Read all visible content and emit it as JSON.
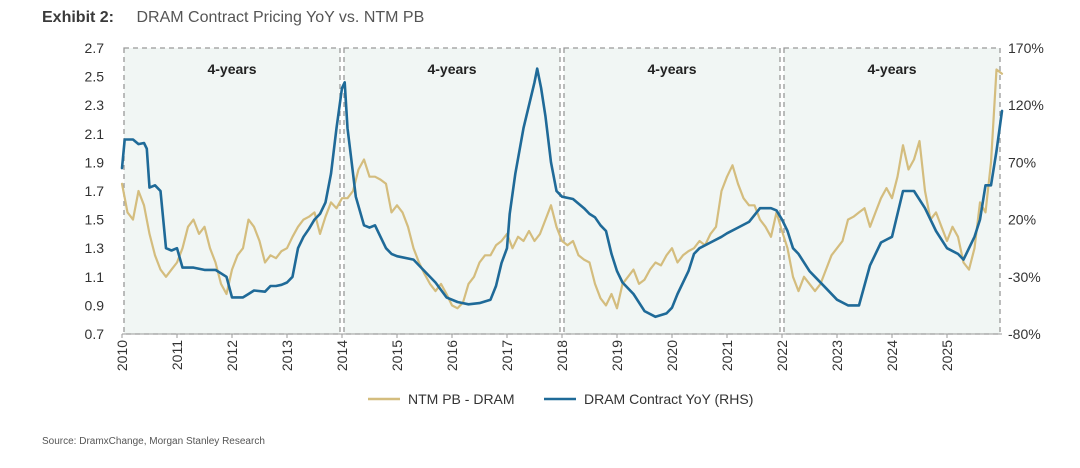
{
  "header": {
    "exhibit": "Exhibit 2:",
    "title": "DRAM Contract Pricing YoY vs. NTM PB"
  },
  "source": "Source: DramxChange, Morgan Stanley Research",
  "chart_data": {
    "type": "line",
    "title": "DRAM Contract Pricing YoY vs. NTM PB",
    "x_range": [
      2010,
      2026
    ],
    "x_ticks": [
      "2010",
      "2011",
      "2012",
      "2013",
      "2014",
      "2015",
      "2016",
      "2017",
      "2018",
      "2019",
      "2020",
      "2021",
      "2022",
      "2023",
      "2024",
      "2025"
    ],
    "y_left": {
      "range": [
        0.7,
        2.7
      ],
      "ticks": [
        "0.7",
        "0.9",
        "1.1",
        "1.3",
        "1.5",
        "1.7",
        "1.9",
        "2.1",
        "2.3",
        "2.5",
        "2.7"
      ]
    },
    "y_right": {
      "range": [
        -80,
        170
      ],
      "ticks": [
        "-80%",
        "-30%",
        "20%",
        "70%",
        "120%",
        "170%"
      ]
    },
    "periods": [
      {
        "label": "4-years",
        "start": 2010.0,
        "end": 2014.0
      },
      {
        "label": "4-years",
        "start": 2014.0,
        "end": 2018.0
      },
      {
        "label": "4-years",
        "start": 2018.0,
        "end": 2022.0
      },
      {
        "label": "4-years",
        "start": 2022.0,
        "end": 2026.0
      }
    ],
    "colors": {
      "pb": "#d4bd7e",
      "yoy": "#1f6a98",
      "shade": "#f1f6f4",
      "border": "#999999"
    },
    "legend_placement": "bottom",
    "series": [
      {
        "name": "NTM PB - DRAM",
        "axis": "left",
        "points": [
          [
            2010.0,
            1.75
          ],
          [
            2010.1,
            1.55
          ],
          [
            2010.2,
            1.5
          ],
          [
            2010.3,
            1.7
          ],
          [
            2010.4,
            1.6
          ],
          [
            2010.5,
            1.4
          ],
          [
            2010.6,
            1.25
          ],
          [
            2010.7,
            1.15
          ],
          [
            2010.8,
            1.1
          ],
          [
            2010.9,
            1.15
          ],
          [
            2011.0,
            1.2
          ],
          [
            2011.1,
            1.3
          ],
          [
            2011.2,
            1.45
          ],
          [
            2011.3,
            1.5
          ],
          [
            2011.4,
            1.4
          ],
          [
            2011.5,
            1.45
          ],
          [
            2011.6,
            1.3
          ],
          [
            2011.7,
            1.2
          ],
          [
            2011.8,
            1.05
          ],
          [
            2011.9,
            0.98
          ],
          [
            2012.0,
            1.15
          ],
          [
            2012.1,
            1.25
          ],
          [
            2012.2,
            1.3
          ],
          [
            2012.3,
            1.5
          ],
          [
            2012.4,
            1.45
          ],
          [
            2012.5,
            1.35
          ],
          [
            2012.6,
            1.2
          ],
          [
            2012.7,
            1.25
          ],
          [
            2012.8,
            1.23
          ],
          [
            2012.9,
            1.28
          ],
          [
            2013.0,
            1.3
          ],
          [
            2013.1,
            1.38
          ],
          [
            2013.2,
            1.45
          ],
          [
            2013.3,
            1.5
          ],
          [
            2013.4,
            1.52
          ],
          [
            2013.5,
            1.55
          ],
          [
            2013.6,
            1.4
          ],
          [
            2013.7,
            1.52
          ],
          [
            2013.8,
            1.62
          ],
          [
            2013.9,
            1.58
          ],
          [
            2014.0,
            1.65
          ],
          [
            2014.1,
            1.65
          ],
          [
            2014.2,
            1.7
          ],
          [
            2014.3,
            1.85
          ],
          [
            2014.4,
            1.92
          ],
          [
            2014.5,
            1.8
          ],
          [
            2014.6,
            1.8
          ],
          [
            2014.7,
            1.78
          ],
          [
            2014.8,
            1.75
          ],
          [
            2014.9,
            1.55
          ],
          [
            2015.0,
            1.6
          ],
          [
            2015.1,
            1.55
          ],
          [
            2015.2,
            1.45
          ],
          [
            2015.3,
            1.3
          ],
          [
            2015.4,
            1.2
          ],
          [
            2015.5,
            1.12
          ],
          [
            2015.6,
            1.05
          ],
          [
            2015.7,
            1.0
          ],
          [
            2015.8,
            1.05
          ],
          [
            2015.9,
            0.98
          ],
          [
            2016.0,
            0.9
          ],
          [
            2016.1,
            0.88
          ],
          [
            2016.2,
            0.92
          ],
          [
            2016.3,
            1.05
          ],
          [
            2016.4,
            1.1
          ],
          [
            2016.5,
            1.2
          ],
          [
            2016.6,
            1.25
          ],
          [
            2016.7,
            1.25
          ],
          [
            2016.8,
            1.32
          ],
          [
            2016.9,
            1.35
          ],
          [
            2017.0,
            1.4
          ],
          [
            2017.1,
            1.3
          ],
          [
            2017.2,
            1.38
          ],
          [
            2017.3,
            1.35
          ],
          [
            2017.4,
            1.42
          ],
          [
            2017.5,
            1.35
          ],
          [
            2017.6,
            1.4
          ],
          [
            2017.7,
            1.5
          ],
          [
            2017.8,
            1.6
          ],
          [
            2017.9,
            1.45
          ],
          [
            2018.0,
            1.35
          ],
          [
            2018.1,
            1.32
          ],
          [
            2018.2,
            1.35
          ],
          [
            2018.3,
            1.25
          ],
          [
            2018.4,
            1.22
          ],
          [
            2018.5,
            1.2
          ],
          [
            2018.6,
            1.05
          ],
          [
            2018.7,
            0.95
          ],
          [
            2018.8,
            0.9
          ],
          [
            2018.9,
            0.98
          ],
          [
            2019.0,
            0.88
          ],
          [
            2019.1,
            1.05
          ],
          [
            2019.2,
            1.1
          ],
          [
            2019.3,
            1.15
          ],
          [
            2019.4,
            1.05
          ],
          [
            2019.5,
            1.08
          ],
          [
            2019.6,
            1.15
          ],
          [
            2019.7,
            1.2
          ],
          [
            2019.8,
            1.18
          ],
          [
            2019.9,
            1.25
          ],
          [
            2020.0,
            1.3
          ],
          [
            2020.1,
            1.2
          ],
          [
            2020.2,
            1.25
          ],
          [
            2020.3,
            1.28
          ],
          [
            2020.4,
            1.3
          ],
          [
            2020.5,
            1.35
          ],
          [
            2020.6,
            1.32
          ],
          [
            2020.7,
            1.4
          ],
          [
            2020.8,
            1.45
          ],
          [
            2020.9,
            1.7
          ],
          [
            2021.0,
            1.8
          ],
          [
            2021.1,
            1.88
          ],
          [
            2021.2,
            1.75
          ],
          [
            2021.3,
            1.65
          ],
          [
            2021.4,
            1.6
          ],
          [
            2021.5,
            1.6
          ],
          [
            2021.6,
            1.5
          ],
          [
            2021.7,
            1.45
          ],
          [
            2021.8,
            1.38
          ],
          [
            2021.9,
            1.55
          ],
          [
            2022.0,
            1.42
          ],
          [
            2022.1,
            1.3
          ],
          [
            2022.2,
            1.1
          ],
          [
            2022.3,
            1.0
          ],
          [
            2022.4,
            1.1
          ],
          [
            2022.5,
            1.05
          ],
          [
            2022.6,
            1.0
          ],
          [
            2022.7,
            1.05
          ],
          [
            2022.8,
            1.15
          ],
          [
            2022.9,
            1.25
          ],
          [
            2023.0,
            1.3
          ],
          [
            2023.1,
            1.35
          ],
          [
            2023.2,
            1.5
          ],
          [
            2023.3,
            1.52
          ],
          [
            2023.4,
            1.55
          ],
          [
            2023.5,
            1.58
          ],
          [
            2023.6,
            1.45
          ],
          [
            2023.7,
            1.55
          ],
          [
            2023.8,
            1.65
          ],
          [
            2023.9,
            1.72
          ],
          [
            2024.0,
            1.65
          ],
          [
            2024.1,
            1.8
          ],
          [
            2024.2,
            2.02
          ],
          [
            2024.3,
            1.85
          ],
          [
            2024.4,
            1.92
          ],
          [
            2024.5,
            2.05
          ],
          [
            2024.6,
            1.7
          ],
          [
            2024.7,
            1.5
          ],
          [
            2024.8,
            1.55
          ],
          [
            2024.9,
            1.45
          ],
          [
            2025.0,
            1.35
          ],
          [
            2025.1,
            1.45
          ],
          [
            2025.2,
            1.38
          ],
          [
            2025.3,
            1.2
          ],
          [
            2025.4,
            1.15
          ],
          [
            2025.5,
            1.3
          ],
          [
            2025.6,
            1.62
          ],
          [
            2025.7,
            1.55
          ],
          [
            2025.8,
            1.9
          ],
          [
            2025.9,
            2.55
          ],
          [
            2026.0,
            2.52
          ]
        ]
      },
      {
        "name": "DRAM Contract YoY (RHS)",
        "axis": "right",
        "points": [
          [
            2010.0,
            65
          ],
          [
            2010.05,
            90
          ],
          [
            2010.2,
            90
          ],
          [
            2010.3,
            86
          ],
          [
            2010.4,
            87
          ],
          [
            2010.45,
            82
          ],
          [
            2010.5,
            48
          ],
          [
            2010.6,
            50
          ],
          [
            2010.7,
            45
          ],
          [
            2010.8,
            -5
          ],
          [
            2010.9,
            -7
          ],
          [
            2011.0,
            -5
          ],
          [
            2011.1,
            -22
          ],
          [
            2011.3,
            -22
          ],
          [
            2011.5,
            -24
          ],
          [
            2011.7,
            -24
          ],
          [
            2011.9,
            -30
          ],
          [
            2012.0,
            -48
          ],
          [
            2012.2,
            -48
          ],
          [
            2012.3,
            -45
          ],
          [
            2012.4,
            -42
          ],
          [
            2012.6,
            -43
          ],
          [
            2012.7,
            -38
          ],
          [
            2012.8,
            -38
          ],
          [
            2012.9,
            -37
          ],
          [
            2013.0,
            -35
          ],
          [
            2013.1,
            -30
          ],
          [
            2013.2,
            -5
          ],
          [
            2013.3,
            5
          ],
          [
            2013.4,
            12
          ],
          [
            2013.5,
            20
          ],
          [
            2013.6,
            25
          ],
          [
            2013.7,
            35
          ],
          [
            2013.8,
            60
          ],
          [
            2013.9,
            100
          ],
          [
            2014.0,
            135
          ],
          [
            2014.05,
            140
          ],
          [
            2014.1,
            100
          ],
          [
            2014.15,
            80
          ],
          [
            2014.25,
            40
          ],
          [
            2014.4,
            15
          ],
          [
            2014.5,
            13
          ],
          [
            2014.6,
            15
          ],
          [
            2014.7,
            5
          ],
          [
            2014.8,
            -5
          ],
          [
            2014.9,
            -10
          ],
          [
            2015.0,
            -12
          ],
          [
            2015.3,
            -15
          ],
          [
            2015.5,
            -25
          ],
          [
            2015.7,
            -35
          ],
          [
            2015.9,
            -48
          ],
          [
            2016.1,
            -52
          ],
          [
            2016.3,
            -54
          ],
          [
            2016.5,
            -53
          ],
          [
            2016.7,
            -50
          ],
          [
            2016.8,
            -38
          ],
          [
            2016.9,
            -18
          ],
          [
            2017.0,
            -5
          ],
          [
            2017.05,
            25
          ],
          [
            2017.15,
            60
          ],
          [
            2017.3,
            100
          ],
          [
            2017.4,
            120
          ],
          [
            2017.5,
            140
          ],
          [
            2017.55,
            152
          ],
          [
            2017.62,
            135
          ],
          [
            2017.7,
            110
          ],
          [
            2017.8,
            70
          ],
          [
            2017.9,
            45
          ],
          [
            2018.0,
            40
          ],
          [
            2018.2,
            38
          ],
          [
            2018.4,
            30
          ],
          [
            2018.5,
            25
          ],
          [
            2018.6,
            22
          ],
          [
            2018.7,
            15
          ],
          [
            2018.8,
            10
          ],
          [
            2018.9,
            -10
          ],
          [
            2019.0,
            -25
          ],
          [
            2019.1,
            -35
          ],
          [
            2019.3,
            -45
          ],
          [
            2019.5,
            -60
          ],
          [
            2019.7,
            -65
          ],
          [
            2019.9,
            -62
          ],
          [
            2020.0,
            -57
          ],
          [
            2020.1,
            -45
          ],
          [
            2020.3,
            -25
          ],
          [
            2020.4,
            -10
          ],
          [
            2020.5,
            -5
          ],
          [
            2020.7,
            0
          ],
          [
            2020.9,
            5
          ],
          [
            2021.0,
            8
          ],
          [
            2021.2,
            13
          ],
          [
            2021.4,
            18
          ],
          [
            2021.6,
            30
          ],
          [
            2021.8,
            30
          ],
          [
            2021.9,
            28
          ],
          [
            2022.0,
            20
          ],
          [
            2022.1,
            10
          ],
          [
            2022.2,
            -5
          ],
          [
            2022.3,
            -10
          ],
          [
            2022.5,
            -25
          ],
          [
            2022.6,
            -30
          ],
          [
            2022.8,
            -40
          ],
          [
            2023.0,
            -50
          ],
          [
            2023.2,
            -55
          ],
          [
            2023.4,
            -55
          ],
          [
            2023.6,
            -20
          ],
          [
            2023.8,
            0
          ],
          [
            2024.0,
            5
          ],
          [
            2024.2,
            45
          ],
          [
            2024.4,
            45
          ],
          [
            2024.6,
            30
          ],
          [
            2024.8,
            10
          ],
          [
            2025.0,
            -5
          ],
          [
            2025.2,
            -10
          ],
          [
            2025.3,
            -15
          ],
          [
            2025.4,
            -5
          ],
          [
            2025.5,
            5
          ],
          [
            2025.6,
            20
          ],
          [
            2025.7,
            50
          ],
          [
            2025.8,
            50
          ],
          [
            2025.9,
            80
          ],
          [
            2026.0,
            115
          ]
        ]
      }
    ]
  }
}
